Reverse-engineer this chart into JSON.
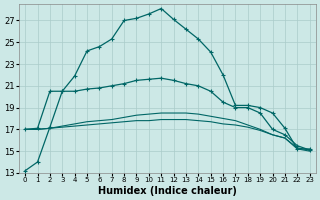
{
  "xlabel": "Humidex (Indice chaleur)",
  "xlim": [
    -0.5,
    23.5
  ],
  "ylim": [
    13,
    28.5
  ],
  "yticks": [
    13,
    15,
    17,
    19,
    21,
    23,
    25,
    27
  ],
  "xticks": [
    0,
    1,
    2,
    3,
    4,
    5,
    6,
    7,
    8,
    9,
    10,
    11,
    12,
    13,
    14,
    15,
    16,
    17,
    18,
    19,
    20,
    21,
    22,
    23
  ],
  "bg_color": "#cce8e6",
  "grid_color": "#aaccca",
  "line_color": "#006666",
  "curve1_x": [
    0,
    1,
    2,
    3,
    4,
    5,
    6,
    7,
    8,
    9,
    10,
    11,
    12,
    13,
    14,
    15,
    16,
    17,
    18,
    19,
    20,
    21,
    22,
    23
  ],
  "curve1_y": [
    13.2,
    14.0,
    17.2,
    20.5,
    21.9,
    24.2,
    24.6,
    25.3,
    27.0,
    27.2,
    27.6,
    28.1,
    27.1,
    26.2,
    25.3,
    24.1,
    22.0,
    19.2,
    19.2,
    19.0,
    18.5,
    17.1,
    15.2,
    15.2
  ],
  "curve2_x": [
    0,
    1,
    2,
    3,
    4,
    5,
    6,
    7,
    8,
    9,
    10,
    11,
    12,
    13,
    14,
    15,
    16,
    17,
    18,
    19,
    20,
    21,
    22,
    23
  ],
  "curve2_y": [
    17.0,
    17.1,
    20.5,
    20.5,
    20.5,
    20.7,
    20.8,
    21.0,
    21.2,
    21.5,
    21.6,
    21.7,
    21.5,
    21.2,
    21.0,
    20.5,
    19.5,
    19.0,
    19.0,
    18.5,
    17.0,
    16.5,
    15.5,
    15.1
  ],
  "curve3_x": [
    0,
    1,
    2,
    3,
    4,
    5,
    6,
    7,
    8,
    9,
    10,
    11,
    12,
    13,
    14,
    15,
    16,
    17,
    18,
    19,
    20,
    21,
    22,
    23
  ],
  "curve3_y": [
    17.0,
    17.0,
    17.1,
    17.3,
    17.5,
    17.7,
    17.8,
    17.9,
    18.1,
    18.3,
    18.4,
    18.5,
    18.5,
    18.5,
    18.4,
    18.2,
    18.0,
    17.8,
    17.4,
    17.0,
    16.5,
    16.2,
    15.3,
    15.1
  ],
  "curve4_x": [
    0,
    1,
    2,
    3,
    4,
    5,
    6,
    7,
    8,
    9,
    10,
    11,
    12,
    13,
    14,
    15,
    16,
    17,
    18,
    19,
    20,
    21,
    22,
    23
  ],
  "curve4_y": [
    17.0,
    17.0,
    17.1,
    17.2,
    17.3,
    17.4,
    17.5,
    17.6,
    17.7,
    17.8,
    17.8,
    17.9,
    17.9,
    17.9,
    17.8,
    17.7,
    17.5,
    17.4,
    17.2,
    16.9,
    16.5,
    16.2,
    15.2,
    15.0
  ]
}
